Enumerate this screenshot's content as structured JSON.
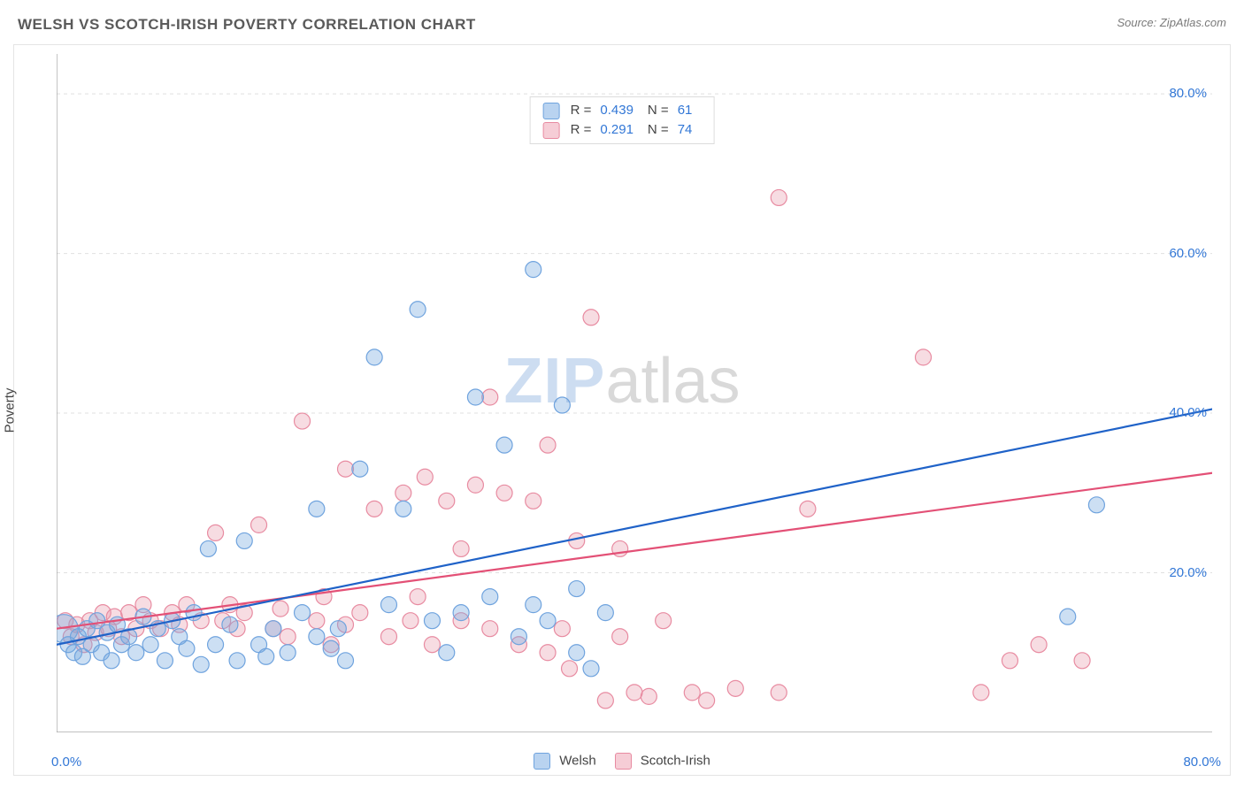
{
  "header": {
    "title": "WELSH VS SCOTCH-IRISH POVERTY CORRELATION CHART",
    "source_prefix": "Source: ",
    "source_name": "ZipAtlas.com"
  },
  "axes": {
    "ylabel": "Poverty",
    "xmin": 0,
    "xmax": 80,
    "ymin": 0,
    "ymax": 85,
    "x_origin_label": "0.0%",
    "x_max_label": "80.0%",
    "y_ticks": [
      {
        "v": 20,
        "label": "20.0%"
      },
      {
        "v": 40,
        "label": "40.0%"
      },
      {
        "v": 60,
        "label": "60.0%"
      },
      {
        "v": 80,
        "label": "80.0%"
      }
    ],
    "x_minor_ticks": [
      0,
      5,
      10,
      15,
      20,
      25,
      30,
      35,
      40,
      45,
      50,
      55,
      60,
      65,
      70,
      75,
      80
    ],
    "grid_color": "#e0e0e0",
    "axis_color": "#9c9c9c",
    "tick_color": "#b8b8b8",
    "label_color": "#3277d6"
  },
  "legend_top": {
    "rows": [
      {
        "swatch_fill": "#b9d3f0",
        "swatch_border": "#6fa3de",
        "r_label": "R =",
        "r": "0.439",
        "n_label": "N =",
        "n": "61"
      },
      {
        "swatch_fill": "#f6cdd6",
        "swatch_border": "#e88ba1",
        "r_label": "R =",
        "r": "0.291",
        "n_label": "N =",
        "n": "74"
      }
    ]
  },
  "legend_bottom": {
    "series": [
      {
        "label": "Welsh",
        "swatch_fill": "#b9d3f0",
        "swatch_border": "#6fa3de"
      },
      {
        "label": "Scotch-Irish",
        "swatch_fill": "#f6cdd6",
        "swatch_border": "#e88ba1"
      }
    ]
  },
  "series": {
    "welsh": {
      "color_fill": "rgba(122,171,224,0.38)",
      "color_stroke": "#6fa3de",
      "marker_r": 9,
      "trend": {
        "x1": 0,
        "y1": 11,
        "x2": 80,
        "y2": 40.5,
        "color": "#1f62c8",
        "width": 2.2
      },
      "points": [
        {
          "x": 0.5,
          "y": 13,
          "r": 16
        },
        {
          "x": 0.8,
          "y": 11
        },
        {
          "x": 1.2,
          "y": 10
        },
        {
          "x": 1.5,
          "y": 12
        },
        {
          "x": 1.8,
          "y": 9.5
        },
        {
          "x": 2.1,
          "y": 13
        },
        {
          "x": 2.4,
          "y": 11
        },
        {
          "x": 2.8,
          "y": 14
        },
        {
          "x": 3.1,
          "y": 10
        },
        {
          "x": 3.5,
          "y": 12.5
        },
        {
          "x": 3.8,
          "y": 9
        },
        {
          "x": 4.2,
          "y": 13.5
        },
        {
          "x": 4.5,
          "y": 11
        },
        {
          "x": 5,
          "y": 12
        },
        {
          "x": 5.5,
          "y": 10
        },
        {
          "x": 6,
          "y": 14.5
        },
        {
          "x": 6.5,
          "y": 11
        },
        {
          "x": 7,
          "y": 13
        },
        {
          "x": 7.5,
          "y": 9
        },
        {
          "x": 8,
          "y": 14
        },
        {
          "x": 8.5,
          "y": 12
        },
        {
          "x": 9,
          "y": 10.5
        },
        {
          "x": 9.5,
          "y": 15
        },
        {
          "x": 10,
          "y": 8.5
        },
        {
          "x": 10.5,
          "y": 23
        },
        {
          "x": 11,
          "y": 11
        },
        {
          "x": 12,
          "y": 13.5
        },
        {
          "x": 12.5,
          "y": 9
        },
        {
          "x": 13,
          "y": 24
        },
        {
          "x": 14,
          "y": 11
        },
        {
          "x": 14.5,
          "y": 9.5
        },
        {
          "x": 15,
          "y": 13
        },
        {
          "x": 16,
          "y": 10
        },
        {
          "x": 17,
          "y": 15
        },
        {
          "x": 18,
          "y": 12
        },
        {
          "x": 18,
          "y": 28
        },
        {
          "x": 19,
          "y": 10.5
        },
        {
          "x": 19.5,
          "y": 13
        },
        {
          "x": 20,
          "y": 9
        },
        {
          "x": 21,
          "y": 33
        },
        {
          "x": 22,
          "y": 47
        },
        {
          "x": 23,
          "y": 16
        },
        {
          "x": 24,
          "y": 28
        },
        {
          "x": 25,
          "y": 53
        },
        {
          "x": 26,
          "y": 14
        },
        {
          "x": 27,
          "y": 10
        },
        {
          "x": 28,
          "y": 15
        },
        {
          "x": 29,
          "y": 42
        },
        {
          "x": 30,
          "y": 17
        },
        {
          "x": 31,
          "y": 36
        },
        {
          "x": 32,
          "y": 12
        },
        {
          "x": 33,
          "y": 16
        },
        {
          "x": 33,
          "y": 58
        },
        {
          "x": 34,
          "y": 14
        },
        {
          "x": 35,
          "y": 41
        },
        {
          "x": 36,
          "y": 10
        },
        {
          "x": 36,
          "y": 18
        },
        {
          "x": 37,
          "y": 8
        },
        {
          "x": 38,
          "y": 15
        },
        {
          "x": 70,
          "y": 14.5
        },
        {
          "x": 72,
          "y": 28.5
        }
      ]
    },
    "scotch_irish": {
      "color_fill": "rgba(233,151,171,0.34)",
      "color_stroke": "#e88ba1",
      "marker_r": 9,
      "trend": {
        "x1": 0,
        "y1": 13,
        "x2": 80,
        "y2": 32.5,
        "color": "#e35076",
        "width": 2.2
      },
      "points": [
        {
          "x": 0.6,
          "y": 14
        },
        {
          "x": 1,
          "y": 12
        },
        {
          "x": 1.4,
          "y": 13.5
        },
        {
          "x": 1.9,
          "y": 11
        },
        {
          "x": 2.3,
          "y": 14
        },
        {
          "x": 2.7,
          "y": 12.5
        },
        {
          "x": 3.2,
          "y": 15
        },
        {
          "x": 3.6,
          "y": 13
        },
        {
          "x": 4,
          "y": 14.5
        },
        {
          "x": 4.5,
          "y": 12
        },
        {
          "x": 5,
          "y": 15
        },
        {
          "x": 5.5,
          "y": 13
        },
        {
          "x": 6,
          "y": 16
        },
        {
          "x": 6.5,
          "y": 14
        },
        {
          "x": 7.2,
          "y": 13
        },
        {
          "x": 8,
          "y": 15
        },
        {
          "x": 8.5,
          "y": 13.5
        },
        {
          "x": 9,
          "y": 16
        },
        {
          "x": 10,
          "y": 14
        },
        {
          "x": 11,
          "y": 25
        },
        {
          "x": 11.5,
          "y": 14
        },
        {
          "x": 12,
          "y": 16
        },
        {
          "x": 12.5,
          "y": 13
        },
        {
          "x": 13,
          "y": 15
        },
        {
          "x": 14,
          "y": 26
        },
        {
          "x": 15,
          "y": 13
        },
        {
          "x": 15.5,
          "y": 15.5
        },
        {
          "x": 16,
          "y": 12
        },
        {
          "x": 17,
          "y": 39
        },
        {
          "x": 18,
          "y": 14
        },
        {
          "x": 18.5,
          "y": 17
        },
        {
          "x": 19,
          "y": 11
        },
        {
          "x": 20,
          "y": 13.5
        },
        {
          "x": 20,
          "y": 33
        },
        {
          "x": 21,
          "y": 15
        },
        {
          "x": 22,
          "y": 28
        },
        {
          "x": 23,
          "y": 12
        },
        {
          "x": 24,
          "y": 30
        },
        {
          "x": 24.5,
          "y": 14
        },
        {
          "x": 25,
          "y": 17
        },
        {
          "x": 25.5,
          "y": 32
        },
        {
          "x": 26,
          "y": 11
        },
        {
          "x": 27,
          "y": 29
        },
        {
          "x": 28,
          "y": 23
        },
        {
          "x": 28,
          "y": 14
        },
        {
          "x": 29,
          "y": 31
        },
        {
          "x": 30,
          "y": 13
        },
        {
          "x": 30,
          "y": 42
        },
        {
          "x": 31,
          "y": 30
        },
        {
          "x": 32,
          "y": 11
        },
        {
          "x": 33,
          "y": 29
        },
        {
          "x": 34,
          "y": 10
        },
        {
          "x": 34,
          "y": 36
        },
        {
          "x": 35,
          "y": 13
        },
        {
          "x": 35.5,
          "y": 8
        },
        {
          "x": 36,
          "y": 24
        },
        {
          "x": 37,
          "y": 52
        },
        {
          "x": 38,
          "y": 4
        },
        {
          "x": 39,
          "y": 12
        },
        {
          "x": 39,
          "y": 23
        },
        {
          "x": 40,
          "y": 5
        },
        {
          "x": 41,
          "y": 4.5
        },
        {
          "x": 42,
          "y": 14
        },
        {
          "x": 44,
          "y": 5
        },
        {
          "x": 45,
          "y": 4
        },
        {
          "x": 47,
          "y": 5.5
        },
        {
          "x": 50,
          "y": 67
        },
        {
          "x": 50,
          "y": 5
        },
        {
          "x": 52,
          "y": 28
        },
        {
          "x": 60,
          "y": 47
        },
        {
          "x": 64,
          "y": 5
        },
        {
          "x": 66,
          "y": 9
        },
        {
          "x": 68,
          "y": 11
        },
        {
          "x": 71,
          "y": 9
        }
      ]
    }
  },
  "watermark": {
    "part1": "ZIP",
    "part2": "atlas"
  }
}
